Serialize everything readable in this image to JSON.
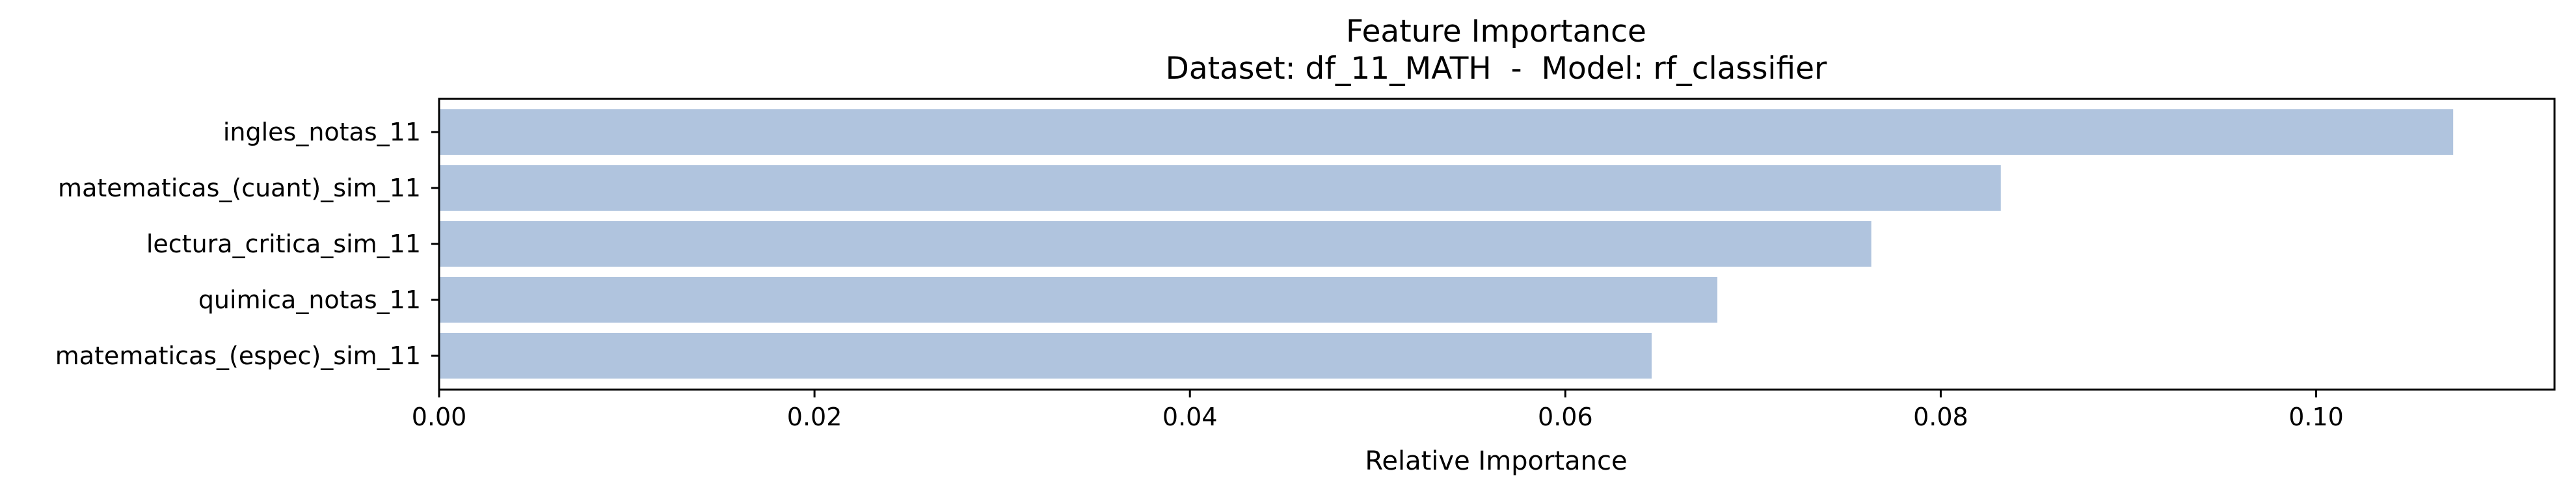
{
  "chart_data": {
    "type": "bar",
    "orientation": "horizontal",
    "title": "Feature Importance",
    "subtitle": "Dataset: df_11_MATH  -  Model: rf_classifier",
    "xlabel": "Relative Importance",
    "ylabel": "",
    "categories": [
      "ingles_notas_11",
      "matematicas_(cuant)_sim_11",
      "lectura_critica_sim_11",
      "quimica_notas_11",
      "matematicas_(espec)_sim_11"
    ],
    "values": [
      0.1073,
      0.0832,
      0.0763,
      0.0681,
      0.0646
    ],
    "xlim": [
      0,
      0.1127
    ],
    "xticks": [
      0.0,
      0.02,
      0.04,
      0.06,
      0.08,
      0.1
    ],
    "xtick_labels": [
      "0.00",
      "0.02",
      "0.04",
      "0.06",
      "0.08",
      "0.10"
    ],
    "bar_color": "#b0c4de",
    "grid": false,
    "legend": "none"
  }
}
